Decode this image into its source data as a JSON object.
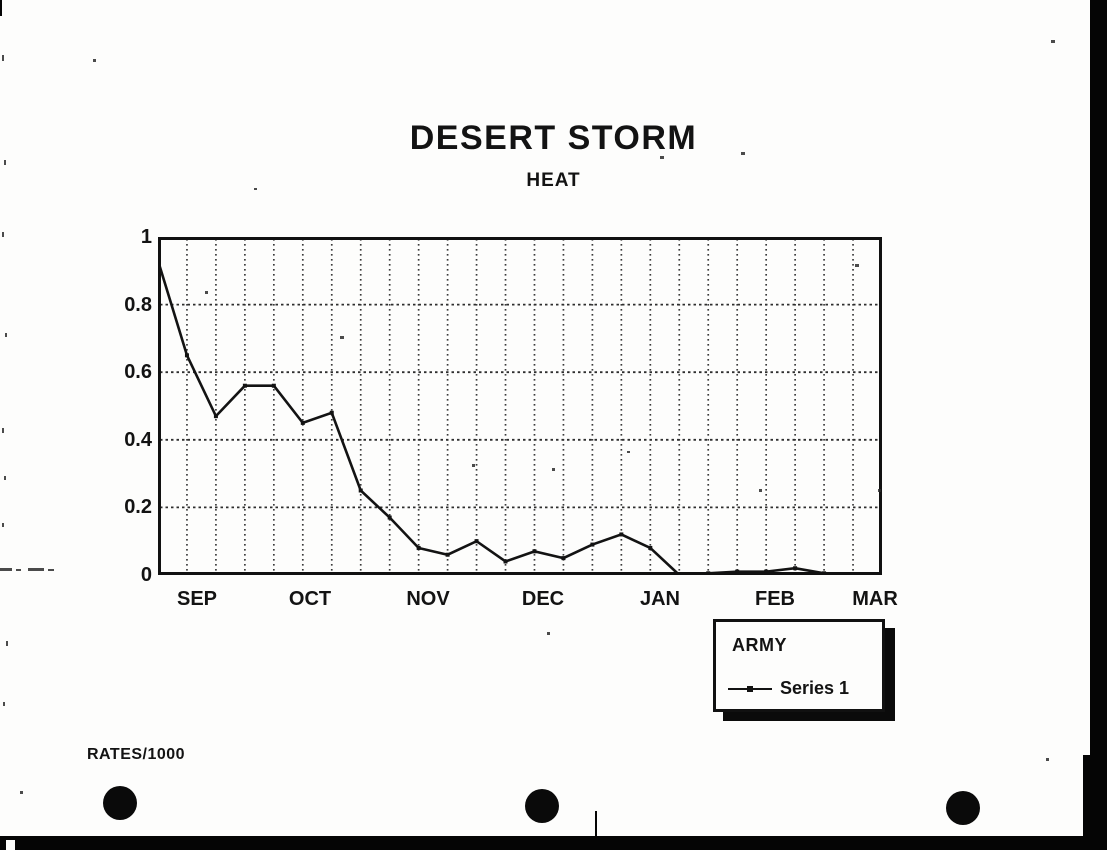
{
  "colors": {
    "ink": "#131313",
    "paper": "#fdfdfc"
  },
  "chart_data": {
    "type": "line",
    "title": "DESERT STORM",
    "subtitle": "HEAT",
    "note": "RATES/1000",
    "x_tick_labels": [
      "SEP",
      "OCT",
      "NOV",
      "DEC",
      "JAN",
      "FEB",
      "MAR"
    ],
    "y_tick_labels": [
      "1",
      "0.8",
      "0.6",
      "0.4",
      "0.2",
      "0"
    ],
    "y_tick_values": [
      1,
      0.8,
      0.6,
      0.4,
      0.2,
      0
    ],
    "ylim": [
      0,
      1
    ],
    "grid": "dotted, vertical line at every weekly point, horizontal at each 0.2",
    "points_per_month": 4,
    "legend": {
      "title": "ARMY",
      "entries": [
        "Series 1"
      ],
      "position": "below-right of plot, shadowed box"
    },
    "series": [
      {
        "name": "Series 1",
        "values": [
          0.93,
          0.65,
          0.47,
          0.56,
          0.56,
          0.45,
          0.48,
          0.25,
          0.17,
          0.08,
          0.06,
          0.1,
          0.04,
          0.07,
          0.05,
          0.09,
          0.12,
          0.08,
          0.0,
          0.005,
          0.01,
          0.01,
          0.02,
          0.005,
          0.0,
          0.005
        ]
      }
    ]
  }
}
